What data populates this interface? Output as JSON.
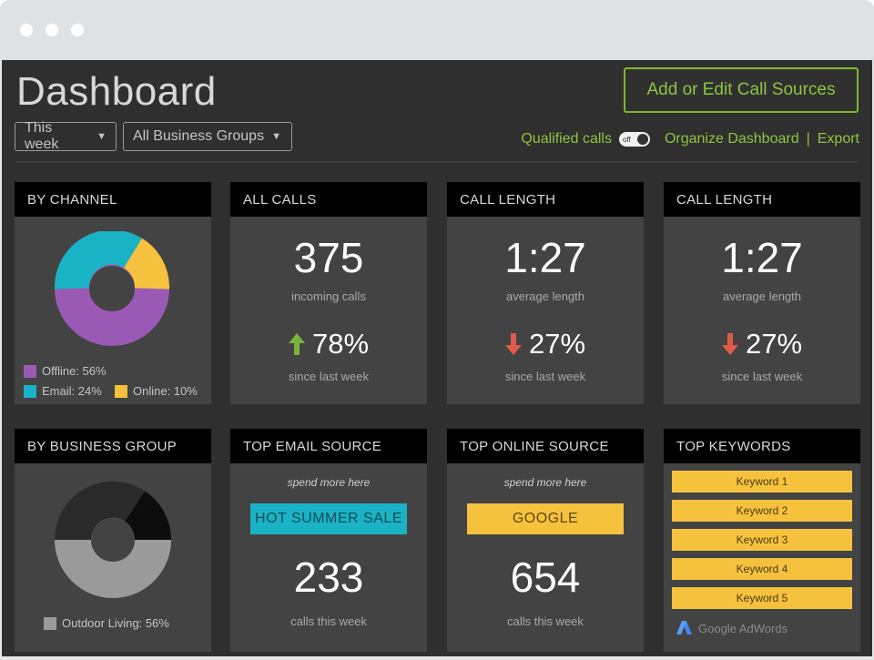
{
  "window": {
    "dots": 3
  },
  "header": {
    "title": "Dashboard",
    "cta_label": "Add or Edit Call Sources",
    "period_select": "This week",
    "group_select": "All Business Groups",
    "qualified_label": "Qualified calls",
    "toggle_state": "off",
    "organize_label": "Organize Dashboard",
    "separator": "|",
    "export_label": "Export"
  },
  "colors": {
    "accent_green": "#8cc63f",
    "purple": "#9b59b6",
    "teal": "#1ab3c6",
    "yellow": "#f6c23e",
    "up_green": "#7ab33b",
    "down_red": "#e05a4a"
  },
  "cards": {
    "by_channel": {
      "title": "BY CHANNEL",
      "legend": [
        {
          "label": "Offline: 56%",
          "color": "#9b59b6"
        },
        {
          "label": "Email: 24%",
          "color": "#1ab3c6"
        },
        {
          "label": "Online: 10%",
          "color": "#f6c23e"
        }
      ]
    },
    "all_calls": {
      "title": "ALL CALLS",
      "value": "375",
      "value_label": "incoming calls",
      "change": "78%",
      "direction": "up",
      "change_label": "since last week"
    },
    "call_length_1": {
      "title": "CALL LENGTH",
      "value": "1:27",
      "value_label": "average length",
      "change": "27%",
      "direction": "down",
      "change_label": "since last week"
    },
    "call_length_2": {
      "title": "CALL LENGTH",
      "value": "1:27",
      "value_label": "average length",
      "change": "27%",
      "direction": "down",
      "change_label": "since last week"
    },
    "by_business_group": {
      "title": "BY BUSINESS GROUP",
      "legend": [
        {
          "label": "Outdoor Living: 56%",
          "color": "#9a9a9a"
        }
      ]
    },
    "top_email": {
      "title": "TOP EMAIL SOURCE",
      "hint": "spend more here",
      "source": "HOT SUMMER SALE",
      "value": "233",
      "value_label": "calls this week"
    },
    "top_online": {
      "title": "TOP ONLINE SOURCE",
      "hint": "spend more here",
      "source": "GOOGLE",
      "value": "654",
      "value_label": "calls this week"
    },
    "top_keywords": {
      "title": "TOP KEYWORDS",
      "keywords": [
        "Keyword 1",
        "Keyword 2",
        "Keyword 3",
        "Keyword 4",
        "Keyword 5"
      ],
      "brand": "Google AdWords"
    }
  }
}
